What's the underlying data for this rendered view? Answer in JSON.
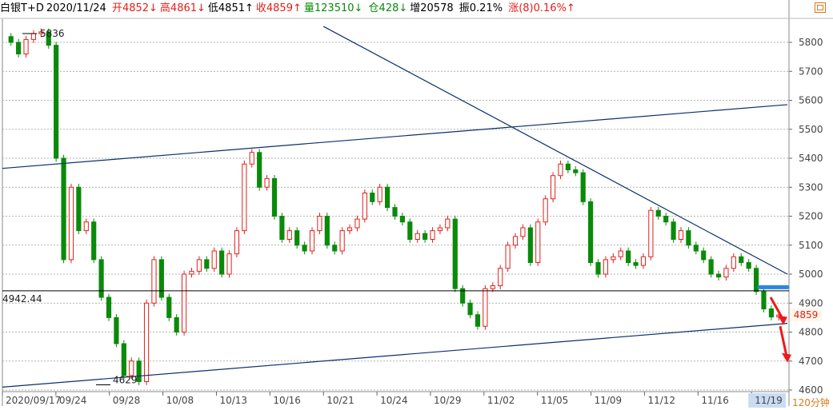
{
  "header": {
    "name": "白银T+D",
    "date": "2020/11/24",
    "open": "开4852↓",
    "high": "高4861↓",
    "low": "低4851↑",
    "close": "收4859↑",
    "volume": "量123510↓",
    "position": "仓428↓",
    "increase": "增20578",
    "amplitude": "振0.21%",
    "change": "涨(8)0.16%↑"
  },
  "period": "120分钟",
  "colors": {
    "up": "#e0201b",
    "down": "#0a8a0a",
    "trend": "#0b2f6b",
    "support": "#2a86e0"
  },
  "icons": {
    "window": "maximize-icon"
  },
  "chart_data": {
    "type": "candlestick",
    "ylim": [
      4600,
      5880
    ],
    "y_ticks": [
      "4600",
      "4700",
      "4800",
      "4900",
      "5000",
      "5100",
      "5200",
      "5300",
      "5400",
      "5500",
      "5600",
      "5700",
      "5800"
    ],
    "x_labels": [
      "2020/09/17",
      "09/24",
      "09/28",
      "10/08",
      "10/13",
      "10/16",
      "10/21",
      "10/24",
      "10/29",
      "11/02",
      "11/05",
      "11/09",
      "11/12",
      "11/16",
      "11/19"
    ],
    "horizontal_line": {
      "label": "4942.44",
      "value": 4942.44
    },
    "peak_label": "5836",
    "trough_label": "4629",
    "last_price": "4859",
    "closes": [
      5800,
      5760,
      5810,
      5830,
      5836,
      5790,
      5400,
      5050,
      5300,
      5150,
      5180,
      5050,
      4920,
      4850,
      4760,
      4650,
      4700,
      4629,
      4900,
      5050,
      4920,
      4850,
      4800,
      5000,
      5010,
      5050,
      5020,
      5080,
      5000,
      5070,
      5150,
      5380,
      5420,
      5300,
      5330,
      5200,
      5120,
      5150,
      5100,
      5080,
      5150,
      5200,
      5100,
      5080,
      5150,
      5160,
      5190,
      5280,
      5250,
      5300,
      5230,
      5200,
      5180,
      5120,
      5140,
      5120,
      5150,
      5160,
      5190,
      4950,
      4900,
      4860,
      4820,
      4950,
      4960,
      5020,
      5100,
      5130,
      5160,
      5040,
      5180,
      5260,
      5340,
      5380,
      5360,
      5350,
      5250,
      5040,
      5000,
      5050,
      5060,
      5080,
      5040,
      5030,
      5060,
      5220,
      5200,
      5180,
      5120,
      5150,
      5100,
      5080,
      5050,
      5000,
      4990,
      5020,
      5060,
      5040,
      5020,
      4940,
      4880,
      4852,
      4859
    ],
    "trend_lines": [
      {
        "name": "",
        "from": [
          "2020/09/17",
          5365
        ],
        "to": [
          "11/24",
          5585
        ]
      },
      {
        "name": "",
        "from": [
          "2020/09/17",
          4610
        ],
        "to": [
          "11/24",
          4830
        ]
      },
      {
        "name": "",
        "from": [
          "10/21",
          5855
        ],
        "to": [
          "11/24",
          5000
        ]
      }
    ],
    "support_zone": {
      "value": 4955,
      "from": "11/19",
      "to": "11/24"
    },
    "arrows": [
      {
        "from": 4920,
        "to": 4830
      },
      {
        "from": 4820,
        "to": 4700
      }
    ]
  }
}
